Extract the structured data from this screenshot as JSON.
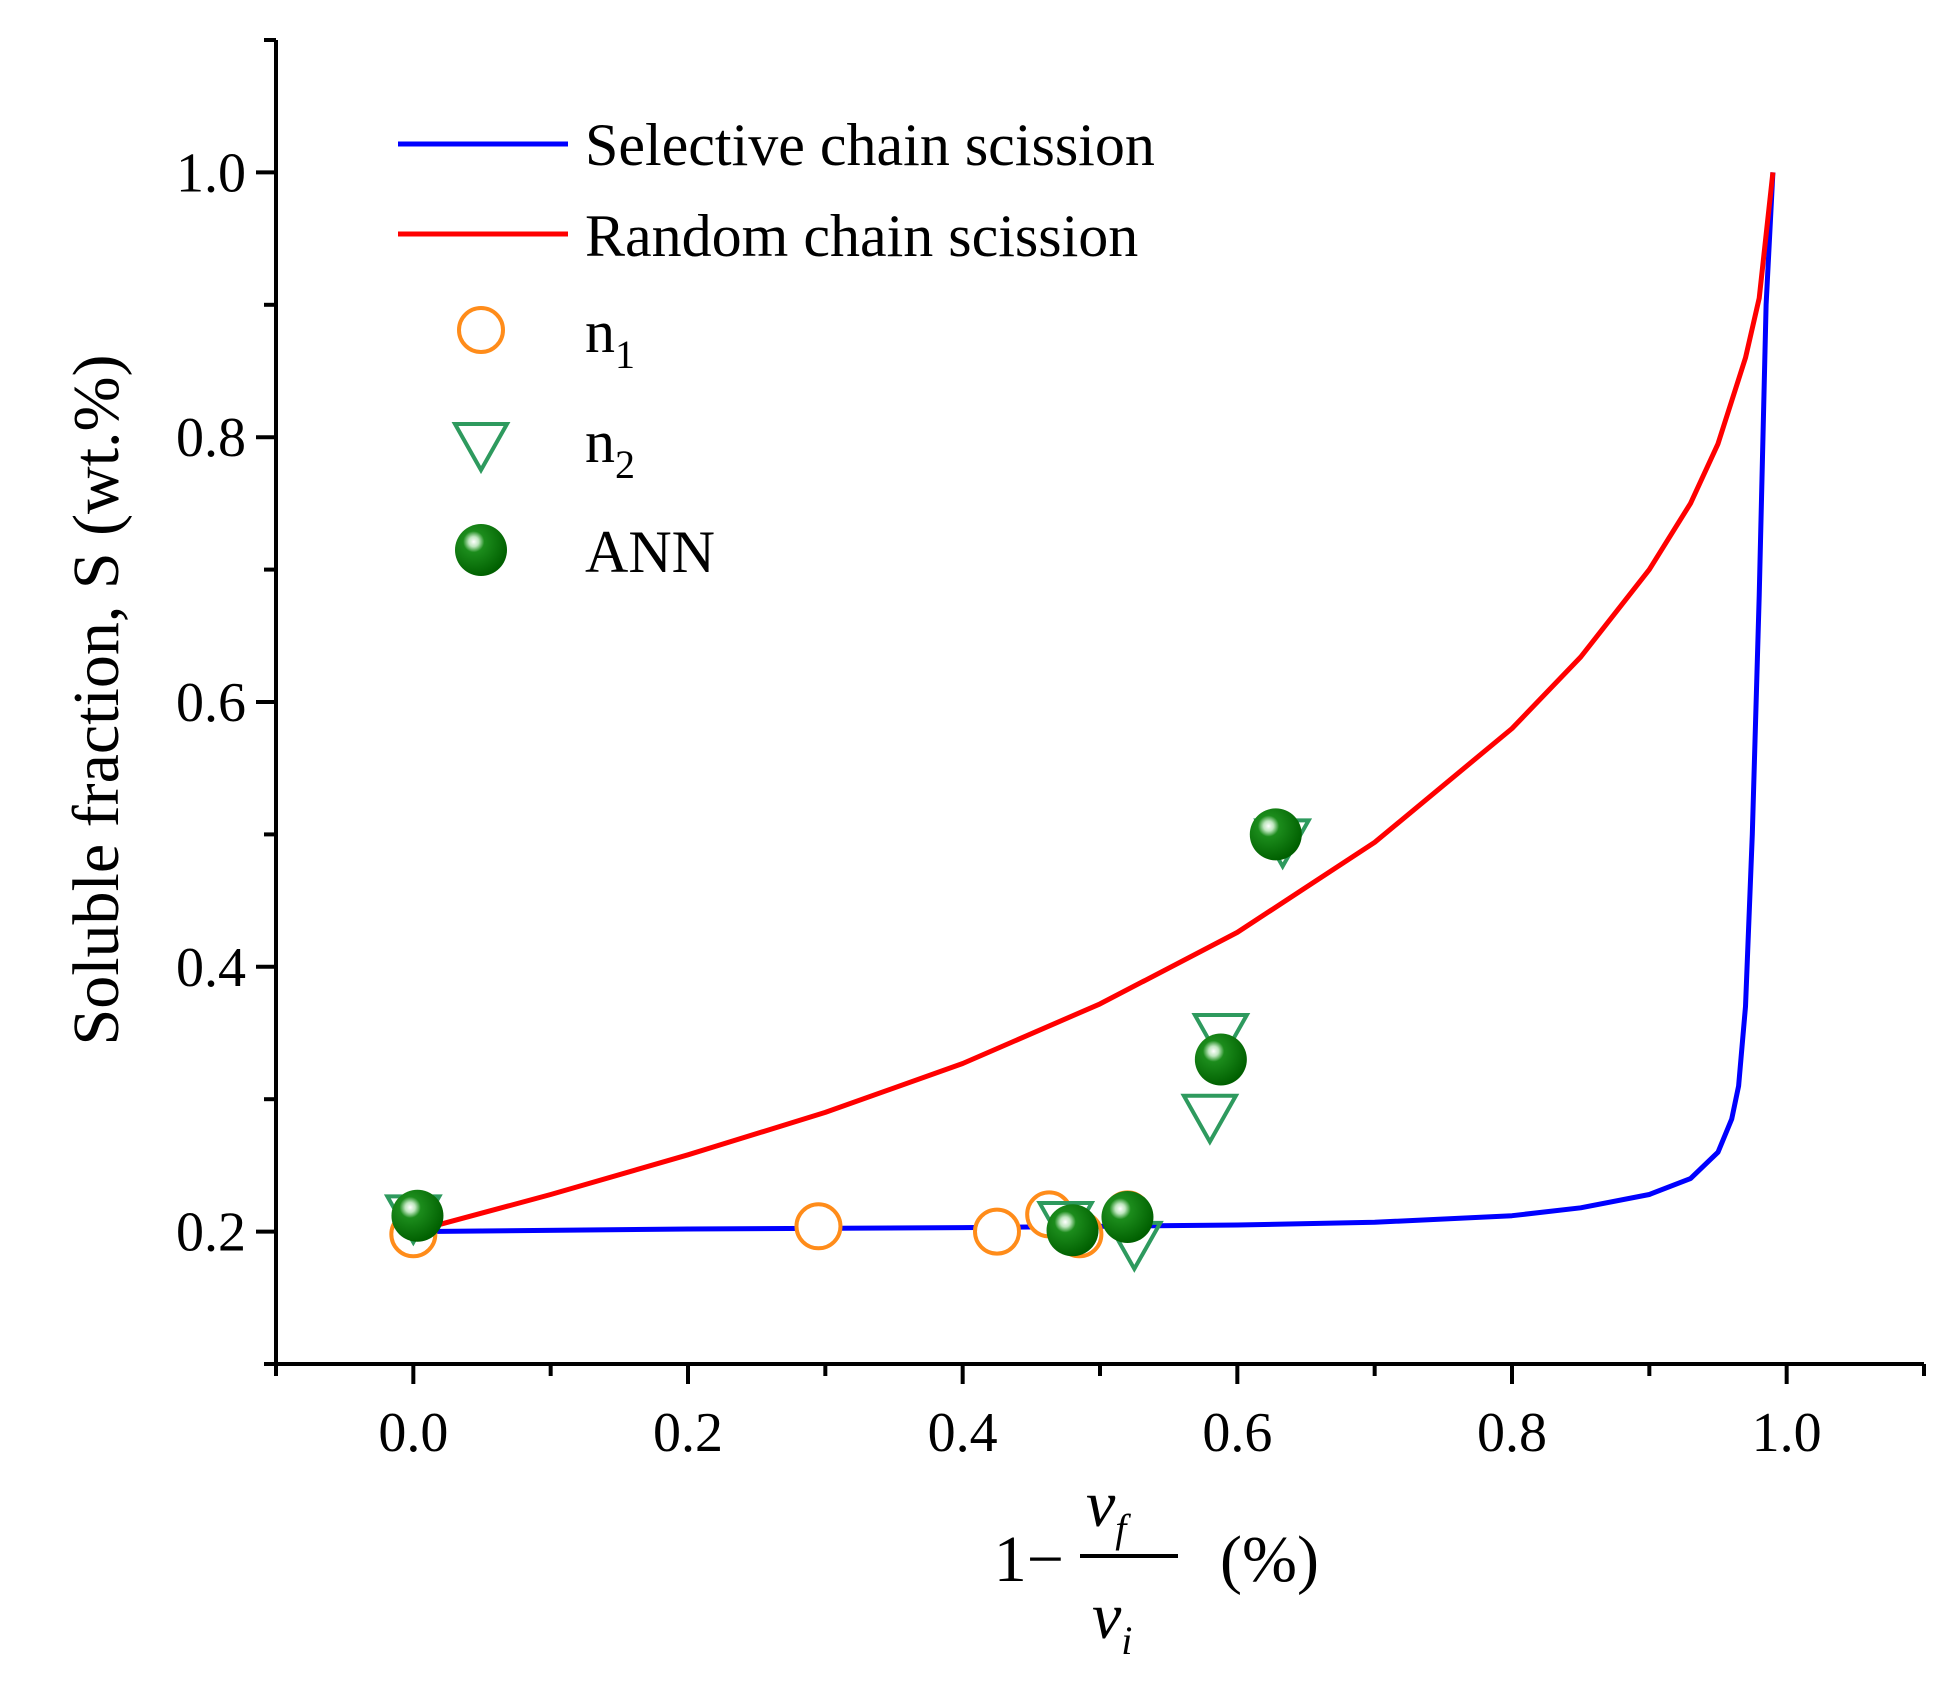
{
  "chart_data": {
    "type": "line",
    "title": "",
    "xlabel": {
      "prefix": "1−",
      "numerator": "ν",
      "numerator_sub": "f",
      "denominator": "ν",
      "denominator_sub": "i",
      "unit": "(%)"
    },
    "ylabel": "Soluble fraction, S (wt.%)",
    "xlim": [
      -0.1,
      1.1
    ],
    "ylim": [
      0.1,
      1.1
    ],
    "x_ticks": [
      0.0,
      0.2,
      0.4,
      0.6,
      0.8,
      1.0
    ],
    "x_tick_labels": [
      "0.0",
      "0.2",
      "0.4",
      "0.6",
      "0.8",
      "1.0"
    ],
    "y_ticks": [
      0.2,
      0.4,
      0.6,
      0.8,
      1.0
    ],
    "y_tick_labels": [
      "0.2",
      "0.4",
      "0.6",
      "0.8",
      "1.0"
    ],
    "legend_position": "top-left",
    "series": [
      {
        "name": "Selective chain scission",
        "kind": "line",
        "color": "#0000ff",
        "x": [
          0.0,
          0.2,
          0.4,
          0.6,
          0.7,
          0.8,
          0.85,
          0.9,
          0.93,
          0.95,
          0.96,
          0.965,
          0.97,
          0.975,
          0.98,
          0.985,
          0.99
        ],
        "y": [
          0.2,
          0.202,
          0.203,
          0.205,
          0.207,
          0.212,
          0.218,
          0.228,
          0.24,
          0.26,
          0.285,
          0.31,
          0.37,
          0.5,
          0.68,
          0.9,
          1.0
        ]
      },
      {
        "name": "Random chain scission",
        "kind": "line",
        "color": "#ff0000",
        "x": [
          0.0,
          0.1,
          0.2,
          0.3,
          0.4,
          0.5,
          0.6,
          0.7,
          0.8,
          0.85,
          0.9,
          0.93,
          0.95,
          0.97,
          0.98,
          0.99
        ],
        "y": [
          0.2,
          0.228,
          0.258,
          0.29,
          0.327,
          0.372,
          0.426,
          0.494,
          0.58,
          0.634,
          0.7,
          0.75,
          0.795,
          0.86,
          0.905,
          1.0
        ]
      },
      {
        "name": "n",
        "name_sub": "1",
        "kind": "scatter",
        "marker": "circle-open",
        "color": "#ff8c1a",
        "x": [
          0.0,
          0.295,
          0.425,
          0.463,
          0.485,
          0.52
        ],
        "y": [
          0.198,
          0.204,
          0.2,
          0.213,
          0.198,
          0.213
        ]
      },
      {
        "name": "n",
        "name_sub": "2",
        "kind": "scatter",
        "marker": "triangle-down-open",
        "color": "#2e9a5e",
        "x": [
          0.0,
          0.475,
          0.525,
          0.58,
          0.588,
          0.633
        ],
        "y": [
          0.21,
          0.205,
          0.19,
          0.286,
          0.347,
          0.494
        ]
      },
      {
        "name": "ANN",
        "kind": "scatter",
        "marker": "sphere",
        "color": "#0a7a0a",
        "x": [
          0.003,
          0.48,
          0.52,
          0.588,
          0.628
        ],
        "y": [
          0.212,
          0.201,
          0.211,
          0.33,
          0.5
        ]
      }
    ]
  }
}
